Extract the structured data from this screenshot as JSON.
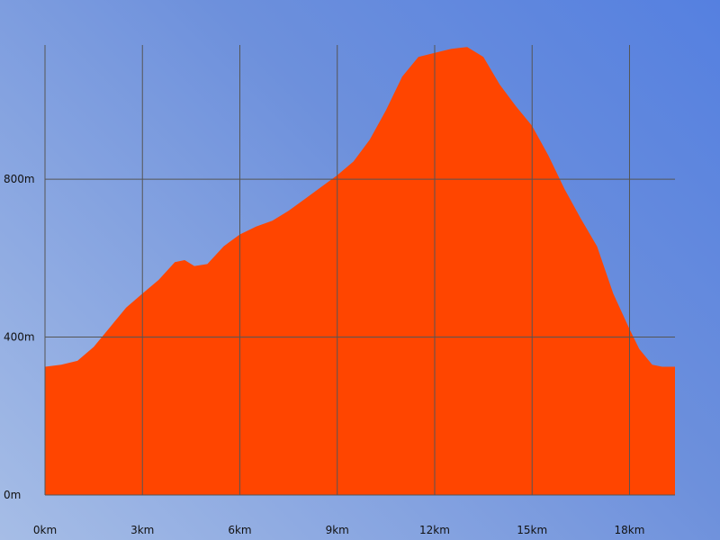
{
  "chart_data": {
    "type": "area",
    "title": "",
    "xlabel": "",
    "ylabel": "",
    "x_unit": "km",
    "y_unit": "m",
    "xlim": [
      0,
      19.4
    ],
    "ylim": [
      0,
      1140
    ],
    "x_ticks": [
      0,
      3,
      6,
      9,
      12,
      15,
      18
    ],
    "x_tick_labels": [
      "0km",
      "3km",
      "6km",
      "9km",
      "12km",
      "15km",
      "18km"
    ],
    "y_ticks": [
      0,
      400,
      800
    ],
    "y_tick_labels": [
      "0m",
      "400m",
      "800m"
    ],
    "grid": true,
    "fill_color": "#ff4500",
    "grid_color": "#555555",
    "series": [
      {
        "x": [
          0,
          0.5,
          1,
          1.5,
          2,
          2.5,
          3,
          3.5,
          4,
          4.3,
          4.6,
          5,
          5.5,
          6,
          6.5,
          7,
          7.5,
          8,
          8.5,
          9,
          9.5,
          10,
          10.5,
          11,
          11.5,
          12,
          12.5,
          13,
          13.5,
          14,
          14.5,
          15,
          15.5,
          16,
          16.5,
          17,
          17.5,
          18,
          18.3,
          18.7,
          19,
          19.4
        ],
        "y": [
          325,
          330,
          340,
          375,
          425,
          475,
          510,
          545,
          590,
          595,
          580,
          585,
          630,
          660,
          680,
          695,
          720,
          750,
          780,
          810,
          845,
          900,
          975,
          1060,
          1110,
          1120,
          1130,
          1135,
          1110,
          1040,
          985,
          935,
          860,
          775,
          700,
          630,
          510,
          420,
          370,
          330,
          325,
          325
        ]
      }
    ]
  }
}
